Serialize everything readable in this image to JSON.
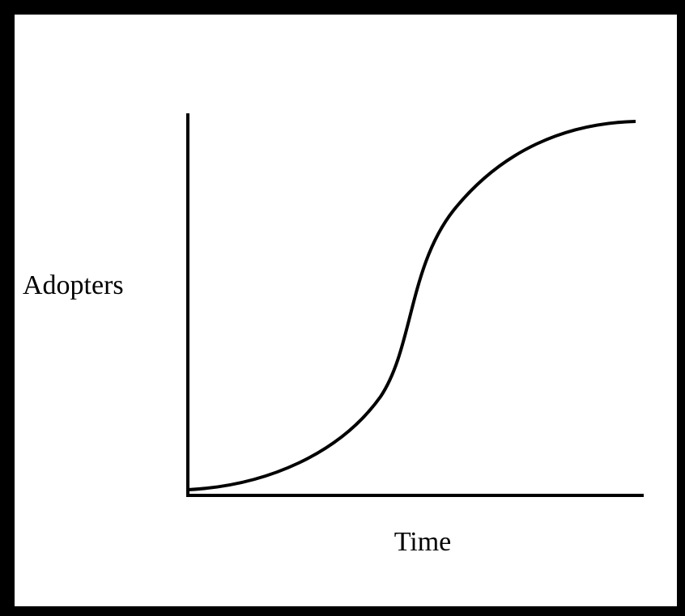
{
  "y_axis_label": "Adopters",
  "x_axis_label": "Time"
}
